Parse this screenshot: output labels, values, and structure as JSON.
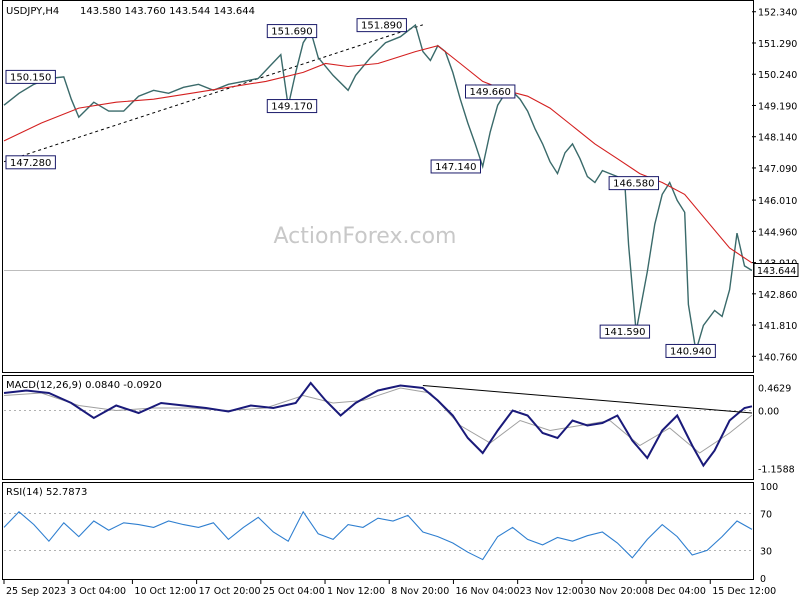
{
  "chart_data": {
    "type": "line",
    "title": "USDJPY,H4",
    "ohlc_values": "143.580 143.760 143.544 143.644",
    "watermark": "ActionForex.com",
    "current_price": "143.644",
    "colors": {
      "price": "#3a6a6a",
      "ma": "#d42020",
      "macd": "#1a1a7a",
      "signal": "#a0a0a0",
      "rsi": "#2f7fd0",
      "trendline": "#000000"
    },
    "price_panel": {
      "ylim": [
        140.3,
        152.6
      ],
      "y_ticks": [
        "152.340",
        "151.290",
        "150.240",
        "149.190",
        "148.140",
        "147.090",
        "146.010",
        "144.960",
        "143.910",
        "142.860",
        "141.810",
        "140.760"
      ],
      "annotations": [
        {
          "label": "150.150",
          "x": 0.012,
          "y": 150.15
        },
        {
          "label": "147.280",
          "x": 0.015,
          "y": 147.28
        },
        {
          "label": "151.690",
          "x": 0.385,
          "y": 151.69
        },
        {
          "label": "151.890",
          "x": 0.505,
          "y": 151.89
        },
        {
          "label": "149.170",
          "x": 0.385,
          "y": 149.17
        },
        {
          "label": "149.660",
          "x": 0.65,
          "y": 149.66
        },
        {
          "label": "147.140",
          "x": 0.604,
          "y": 147.14
        },
        {
          "label": "146.580",
          "x": 0.842,
          "y": 146.58
        },
        {
          "label": "141.590",
          "x": 0.83,
          "y": 141.59
        },
        {
          "label": "140.940",
          "x": 0.918,
          "y": 140.94
        }
      ],
      "price_series": [
        [
          0,
          149.2
        ],
        [
          0.02,
          149.6
        ],
        [
          0.04,
          149.9
        ],
        [
          0.06,
          150.1
        ],
        [
          0.08,
          150.15
        ],
        [
          0.09,
          149.4
        ],
        [
          0.1,
          148.8
        ],
        [
          0.12,
          149.3
        ],
        [
          0.14,
          149.0
        ],
        [
          0.16,
          149.0
        ],
        [
          0.18,
          149.5
        ],
        [
          0.2,
          149.7
        ],
        [
          0.22,
          149.6
        ],
        [
          0.24,
          149.8
        ],
        [
          0.26,
          149.9
        ],
        [
          0.28,
          149.7
        ],
        [
          0.3,
          149.9
        ],
        [
          0.32,
          150.0
        ],
        [
          0.34,
          150.1
        ],
        [
          0.355,
          150.5
        ],
        [
          0.37,
          150.9
        ],
        [
          0.38,
          149.17
        ],
        [
          0.39,
          150.3
        ],
        [
          0.4,
          151.3
        ],
        [
          0.41,
          151.69
        ],
        [
          0.42,
          150.8
        ],
        [
          0.44,
          150.2
        ],
        [
          0.46,
          149.7
        ],
        [
          0.47,
          150.2
        ],
        [
          0.49,
          150.8
        ],
        [
          0.51,
          151.3
        ],
        [
          0.53,
          151.5
        ],
        [
          0.55,
          151.89
        ],
        [
          0.56,
          151.0
        ],
        [
          0.57,
          150.7
        ],
        [
          0.58,
          151.2
        ],
        [
          0.59,
          151.0
        ],
        [
          0.6,
          150.3
        ],
        [
          0.61,
          149.4
        ],
        [
          0.62,
          148.6
        ],
        [
          0.63,
          147.9
        ],
        [
          0.64,
          147.14
        ],
        [
          0.65,
          148.3
        ],
        [
          0.66,
          149.2
        ],
        [
          0.67,
          149.6
        ],
        [
          0.68,
          149.66
        ],
        [
          0.69,
          149.4
        ],
        [
          0.7,
          149.0
        ],
        [
          0.71,
          148.4
        ],
        [
          0.72,
          147.9
        ],
        [
          0.73,
          147.3
        ],
        [
          0.74,
          146.9
        ],
        [
          0.75,
          147.6
        ],
        [
          0.76,
          147.9
        ],
        [
          0.77,
          147.4
        ],
        [
          0.78,
          146.8
        ],
        [
          0.79,
          146.6
        ],
        [
          0.8,
          147.0
        ],
        [
          0.81,
          146.9
        ],
        [
          0.82,
          146.8
        ],
        [
          0.83,
          146.58
        ],
        [
          0.835,
          144.5
        ],
        [
          0.845,
          141.59
        ],
        [
          0.86,
          143.6
        ],
        [
          0.87,
          145.2
        ],
        [
          0.88,
          146.2
        ],
        [
          0.89,
          146.6
        ],
        [
          0.9,
          146.0
        ],
        [
          0.91,
          145.6
        ],
        [
          0.915,
          142.5
        ],
        [
          0.925,
          140.94
        ],
        [
          0.935,
          141.8
        ],
        [
          0.95,
          142.3
        ],
        [
          0.96,
          142.1
        ],
        [
          0.97,
          143.0
        ],
        [
          0.98,
          144.9
        ],
        [
          0.99,
          143.8
        ],
        [
          1.0,
          143.644
        ]
      ],
      "ma_series": [
        [
          0,
          148.0
        ],
        [
          0.05,
          148.6
        ],
        [
          0.1,
          149.1
        ],
        [
          0.15,
          149.3
        ],
        [
          0.2,
          149.4
        ],
        [
          0.25,
          149.6
        ],
        [
          0.3,
          149.8
        ],
        [
          0.35,
          150.0
        ],
        [
          0.4,
          150.3
        ],
        [
          0.43,
          150.6
        ],
        [
          0.46,
          150.5
        ],
        [
          0.5,
          150.6
        ],
        [
          0.55,
          151.0
        ],
        [
          0.58,
          151.2
        ],
        [
          0.61,
          150.6
        ],
        [
          0.64,
          150.0
        ],
        [
          0.67,
          149.7
        ],
        [
          0.7,
          149.5
        ],
        [
          0.73,
          149.1
        ],
        [
          0.76,
          148.5
        ],
        [
          0.79,
          147.9
        ],
        [
          0.82,
          147.4
        ],
        [
          0.85,
          146.9
        ],
        [
          0.88,
          146.6
        ],
        [
          0.91,
          146.2
        ],
        [
          0.94,
          145.3
        ],
        [
          0.97,
          144.4
        ],
        [
          1.0,
          143.9
        ]
      ],
      "trendlines": [
        {
          "from": [
            0,
            147.3
          ],
          "to": [
            0.56,
            151.9
          ]
        }
      ]
    },
    "macd_panel": {
      "label": "MACD(12,26,9) 0.0840 -0.0920",
      "ylim": [
        -1.35,
        0.65
      ],
      "y_ticks": [
        "0.4629",
        "0.00",
        "-1.1588"
      ],
      "macd_series": [
        [
          0,
          0.35
        ],
        [
          0.03,
          0.4
        ],
        [
          0.06,
          0.35
        ],
        [
          0.09,
          0.15
        ],
        [
          0.12,
          -0.15
        ],
        [
          0.15,
          0.1
        ],
        [
          0.18,
          -0.05
        ],
        [
          0.21,
          0.15
        ],
        [
          0.24,
          0.1
        ],
        [
          0.27,
          0.05
        ],
        [
          0.3,
          -0.02
        ],
        [
          0.33,
          0.1
        ],
        [
          0.36,
          0.05
        ],
        [
          0.39,
          0.15
        ],
        [
          0.41,
          0.55
        ],
        [
          0.43,
          0.2
        ],
        [
          0.45,
          -0.1
        ],
        [
          0.47,
          0.15
        ],
        [
          0.5,
          0.4
        ],
        [
          0.53,
          0.5
        ],
        [
          0.56,
          0.45
        ],
        [
          0.58,
          0.2
        ],
        [
          0.6,
          -0.1
        ],
        [
          0.62,
          -0.55
        ],
        [
          0.64,
          -0.85
        ],
        [
          0.66,
          -0.4
        ],
        [
          0.68,
          0.0
        ],
        [
          0.7,
          -0.1
        ],
        [
          0.72,
          -0.45
        ],
        [
          0.74,
          -0.55
        ],
        [
          0.76,
          -0.2
        ],
        [
          0.78,
          -0.3
        ],
        [
          0.8,
          -0.25
        ],
        [
          0.82,
          -0.1
        ],
        [
          0.84,
          -0.6
        ],
        [
          0.86,
          -0.95
        ],
        [
          0.88,
          -0.4
        ],
        [
          0.9,
          -0.1
        ],
        [
          0.92,
          -0.7
        ],
        [
          0.935,
          -1.1
        ],
        [
          0.95,
          -0.8
        ],
        [
          0.97,
          -0.2
        ],
        [
          0.99,
          0.05
        ],
        [
          1.0,
          0.084
        ]
      ],
      "signal_series": [
        [
          0,
          0.3
        ],
        [
          0.05,
          0.35
        ],
        [
          0.1,
          0.1
        ],
        [
          0.15,
          0.0
        ],
        [
          0.2,
          0.05
        ],
        [
          0.25,
          0.05
        ],
        [
          0.3,
          0.0
        ],
        [
          0.35,
          0.05
        ],
        [
          0.4,
          0.3
        ],
        [
          0.44,
          0.15
        ],
        [
          0.48,
          0.2
        ],
        [
          0.53,
          0.45
        ],
        [
          0.57,
          0.35
        ],
        [
          0.61,
          -0.3
        ],
        [
          0.65,
          -0.65
        ],
        [
          0.69,
          -0.2
        ],
        [
          0.73,
          -0.4
        ],
        [
          0.77,
          -0.3
        ],
        [
          0.81,
          -0.2
        ],
        [
          0.85,
          -0.7
        ],
        [
          0.89,
          -0.35
        ],
        [
          0.93,
          -0.85
        ],
        [
          0.97,
          -0.45
        ],
        [
          1.0,
          -0.092
        ]
      ],
      "trendline": {
        "from": [
          0.56,
          0.5
        ],
        "to": [
          1.0,
          -0.05
        ]
      }
    },
    "rsi_panel": {
      "label": "RSI(14) 52.7873",
      "ylim": [
        0,
        100
      ],
      "y_ticks": [
        "100",
        "70",
        "30",
        "0"
      ],
      "levels": [
        70,
        30
      ],
      "rsi_series": [
        [
          0,
          55
        ],
        [
          0.02,
          72
        ],
        [
          0.04,
          58
        ],
        [
          0.06,
          40
        ],
        [
          0.08,
          60
        ],
        [
          0.1,
          45
        ],
        [
          0.12,
          62
        ],
        [
          0.14,
          52
        ],
        [
          0.16,
          60
        ],
        [
          0.18,
          58
        ],
        [
          0.2,
          55
        ],
        [
          0.22,
          62
        ],
        [
          0.24,
          58
        ],
        [
          0.26,
          55
        ],
        [
          0.28,
          60
        ],
        [
          0.3,
          42
        ],
        [
          0.32,
          55
        ],
        [
          0.34,
          66
        ],
        [
          0.36,
          50
        ],
        [
          0.38,
          40
        ],
        [
          0.4,
          72
        ],
        [
          0.42,
          48
        ],
        [
          0.44,
          42
        ],
        [
          0.46,
          58
        ],
        [
          0.48,
          55
        ],
        [
          0.5,
          65
        ],
        [
          0.52,
          62
        ],
        [
          0.54,
          68
        ],
        [
          0.56,
          50
        ],
        [
          0.58,
          45
        ],
        [
          0.6,
          38
        ],
        [
          0.62,
          28
        ],
        [
          0.64,
          20
        ],
        [
          0.66,
          45
        ],
        [
          0.68,
          55
        ],
        [
          0.7,
          42
        ],
        [
          0.72,
          36
        ],
        [
          0.74,
          44
        ],
        [
          0.76,
          40
        ],
        [
          0.78,
          46
        ],
        [
          0.8,
          50
        ],
        [
          0.82,
          38
        ],
        [
          0.84,
          22
        ],
        [
          0.86,
          42
        ],
        [
          0.88,
          58
        ],
        [
          0.9,
          45
        ],
        [
          0.92,
          25
        ],
        [
          0.94,
          30
        ],
        [
          0.96,
          45
        ],
        [
          0.98,
          62
        ],
        [
          1.0,
          52.79
        ]
      ]
    },
    "x_ticks": [
      "25 Sep 2023",
      "3 Oct 04:00",
      "10 Oct 12:00",
      "17 Oct 20:00",
      "25 Oct 04:00",
      "1 Nov 12:00",
      "8 Nov 20:00",
      "16 Nov 04:00",
      "23 Nov 12:00",
      "30 Nov 20:00",
      "8 Dec 04:00",
      "15 Dec 12:00"
    ]
  }
}
